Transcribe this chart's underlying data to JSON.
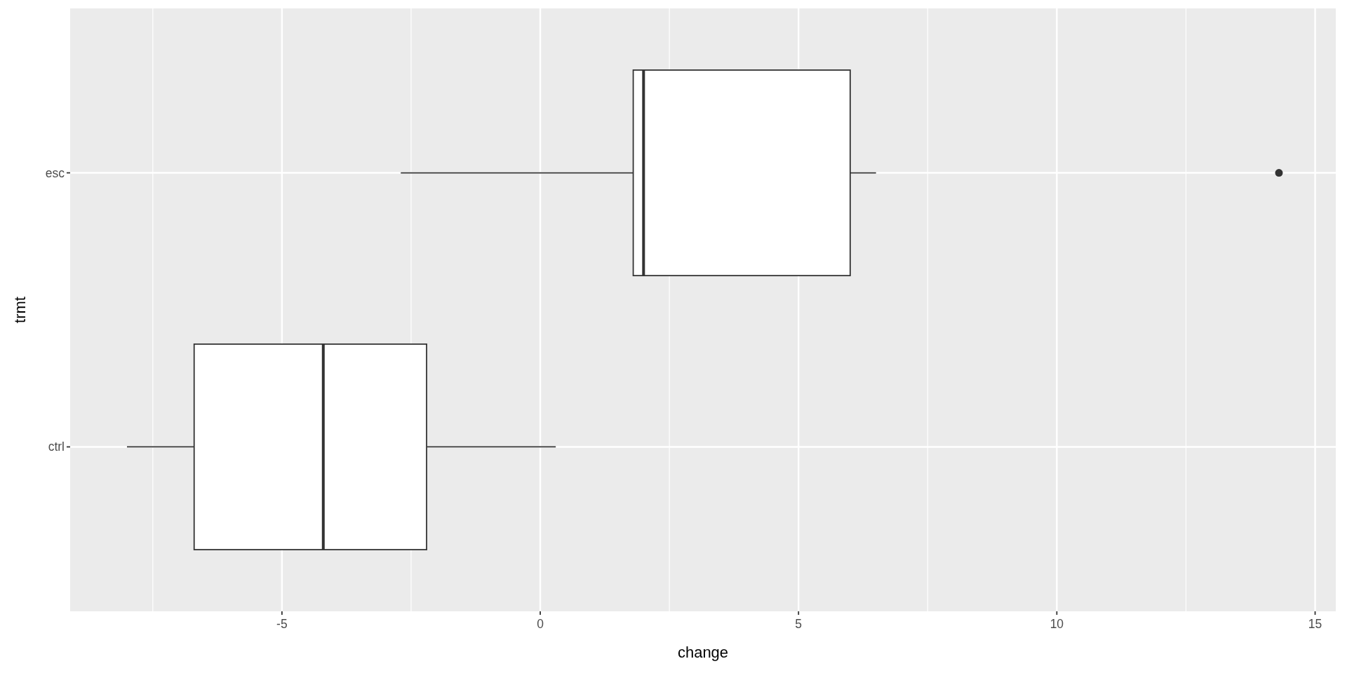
{
  "chart_data": {
    "type": "box",
    "orientation": "horizontal",
    "xlabel": "change",
    "ylabel": "trmt",
    "categories": [
      "esc",
      "ctrl"
    ],
    "boxes": [
      {
        "low": -2.7,
        "q1": 1.8,
        "median": 2.0,
        "q3": 6.0,
        "high": 6.5,
        "outliers": [
          14.3
        ]
      },
      {
        "low": -8.0,
        "q1": -6.7,
        "median": -4.2,
        "q3": -2.2,
        "high": 0.3
      }
    ],
    "xlim": [
      -9.1,
      15.4
    ],
    "xticks": [
      {
        "value": -7.5,
        "label": null
      },
      -5,
      {
        "value": -2.5,
        "label": null
      },
      0,
      {
        "value": 2.5,
        "label": null
      },
      5,
      {
        "value": 7.5,
        "label": null
      },
      10,
      {
        "value": 12.5,
        "label": null
      },
      15
    ],
    "grid": true,
    "color": "#ffffff"
  }
}
